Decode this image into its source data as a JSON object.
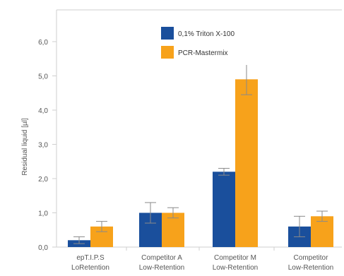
{
  "chart_data": {
    "type": "bar",
    "ylabel": "Residual liquid [µl]",
    "ylim": [
      0,
      6.6
    ],
    "yticks": [
      "0,0",
      "1,0",
      "2,0",
      "3,0",
      "4,0",
      "5,0",
      "6,0"
    ],
    "ytick_values": [
      0,
      1,
      2,
      3,
      4,
      5,
      6
    ],
    "categories": [
      [
        "epT.I.P.S",
        "LoRetention"
      ],
      [
        "Competitor A",
        "Low-Retention"
      ],
      [
        "Competitor M",
        "Low-Retention"
      ],
      [
        "Competitor",
        "Low-Retention"
      ]
    ],
    "series": [
      {
        "name": "0,1% Triton X-100",
        "values": [
          0.2,
          1.0,
          2.2,
          0.6
        ],
        "errors": [
          0.1,
          0.3,
          0.1,
          0.3
        ],
        "color": "#1a4f9c"
      },
      {
        "name": "PCR-Mastermix",
        "values": [
          0.6,
          1.0,
          4.9,
          0.9
        ],
        "errors": [
          0.15,
          0.15,
          0.45,
          0.15
        ],
        "color": "#f7a21b"
      }
    ],
    "grid": false,
    "legend_position": "top-center"
  }
}
